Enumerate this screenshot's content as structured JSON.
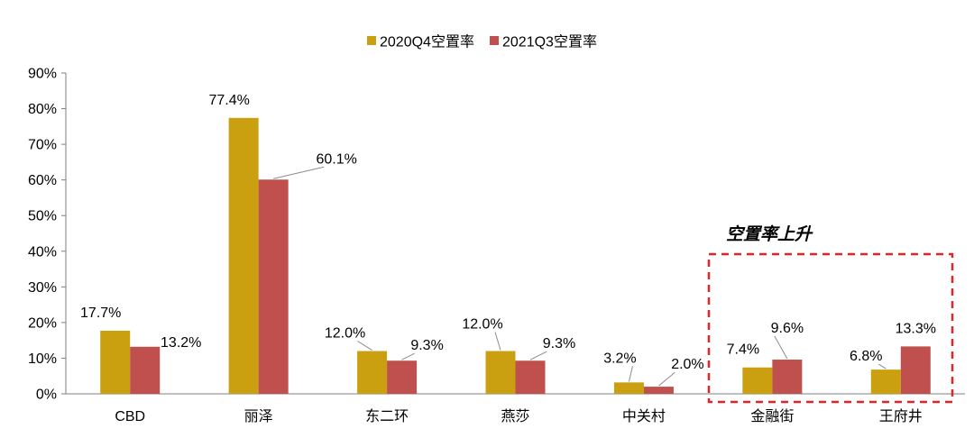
{
  "chart_data": {
    "type": "bar",
    "categories": [
      "CBD",
      "丽泽",
      "东二环",
      "燕莎",
      "中关村",
      "金融街",
      "王府井"
    ],
    "series": [
      {
        "name": "2020Q4空置率",
        "values": [
          17.7,
          77.4,
          12.0,
          12.0,
          3.2,
          7.4,
          6.8
        ],
        "labels": [
          "17.7%",
          "77.4%",
          "12.0%",
          "12.0%",
          "3.2%",
          "7.4%",
          "6.8%"
        ],
        "color": "#CBA010"
      },
      {
        "name": "2021Q3空置率",
        "values": [
          13.2,
          60.1,
          9.3,
          9.3,
          2.0,
          9.6,
          13.3
        ],
        "labels": [
          "13.2%",
          "60.1%",
          "9.3%",
          "9.3%",
          "2.0%",
          "9.6%",
          "13.3%"
        ],
        "color": "#C0504D"
      }
    ],
    "ylim": [
      0,
      90
    ],
    "yticks": [
      0,
      10,
      20,
      30,
      40,
      50,
      60,
      70,
      80,
      90
    ],
    "ytick_labels": [
      "0%",
      "10%",
      "20%",
      "30%",
      "40%",
      "50%",
      "60%",
      "70%",
      "80%",
      "90%"
    ],
    "legend_position": "top-center",
    "grid": false,
    "annotation": {
      "text": "空置率上升",
      "color": "#000000",
      "box_color": "#E0252B"
    }
  }
}
